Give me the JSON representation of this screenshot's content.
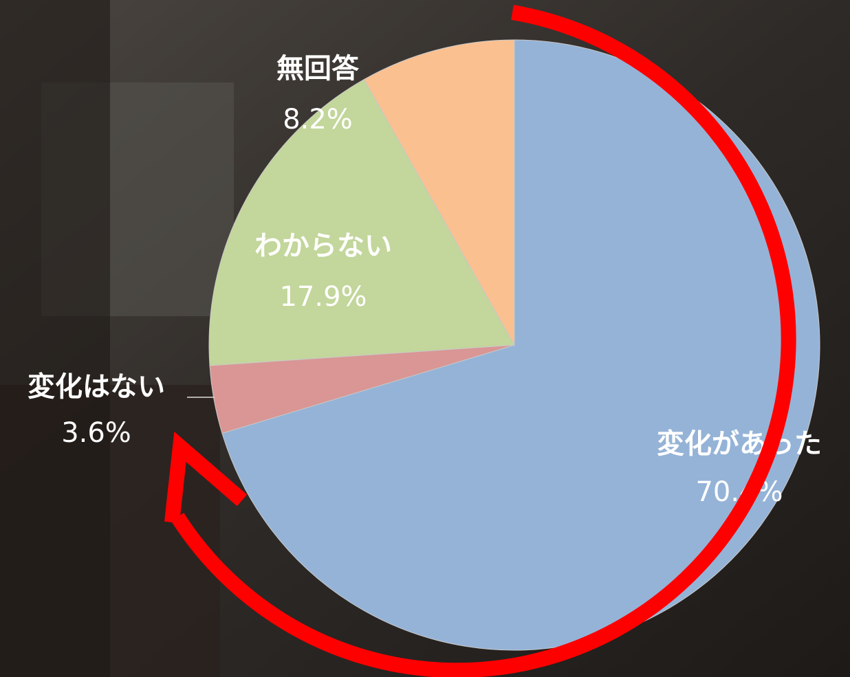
{
  "chart_data": {
    "type": "pie",
    "categories": [
      "変化があった",
      "変化はない",
      "わからない",
      "無回答"
    ],
    "values": [
      70.4,
      3.6,
      17.9,
      8.2
    ],
    "value_labels": [
      "70.4%",
      "3.6%",
      "17.9%",
      "8.2%"
    ],
    "colors": [
      "#95b3d7",
      "#d99694",
      "#c3d69b",
      "#fac090"
    ],
    "start_angle": 90,
    "direction": "clockwise"
  }
}
